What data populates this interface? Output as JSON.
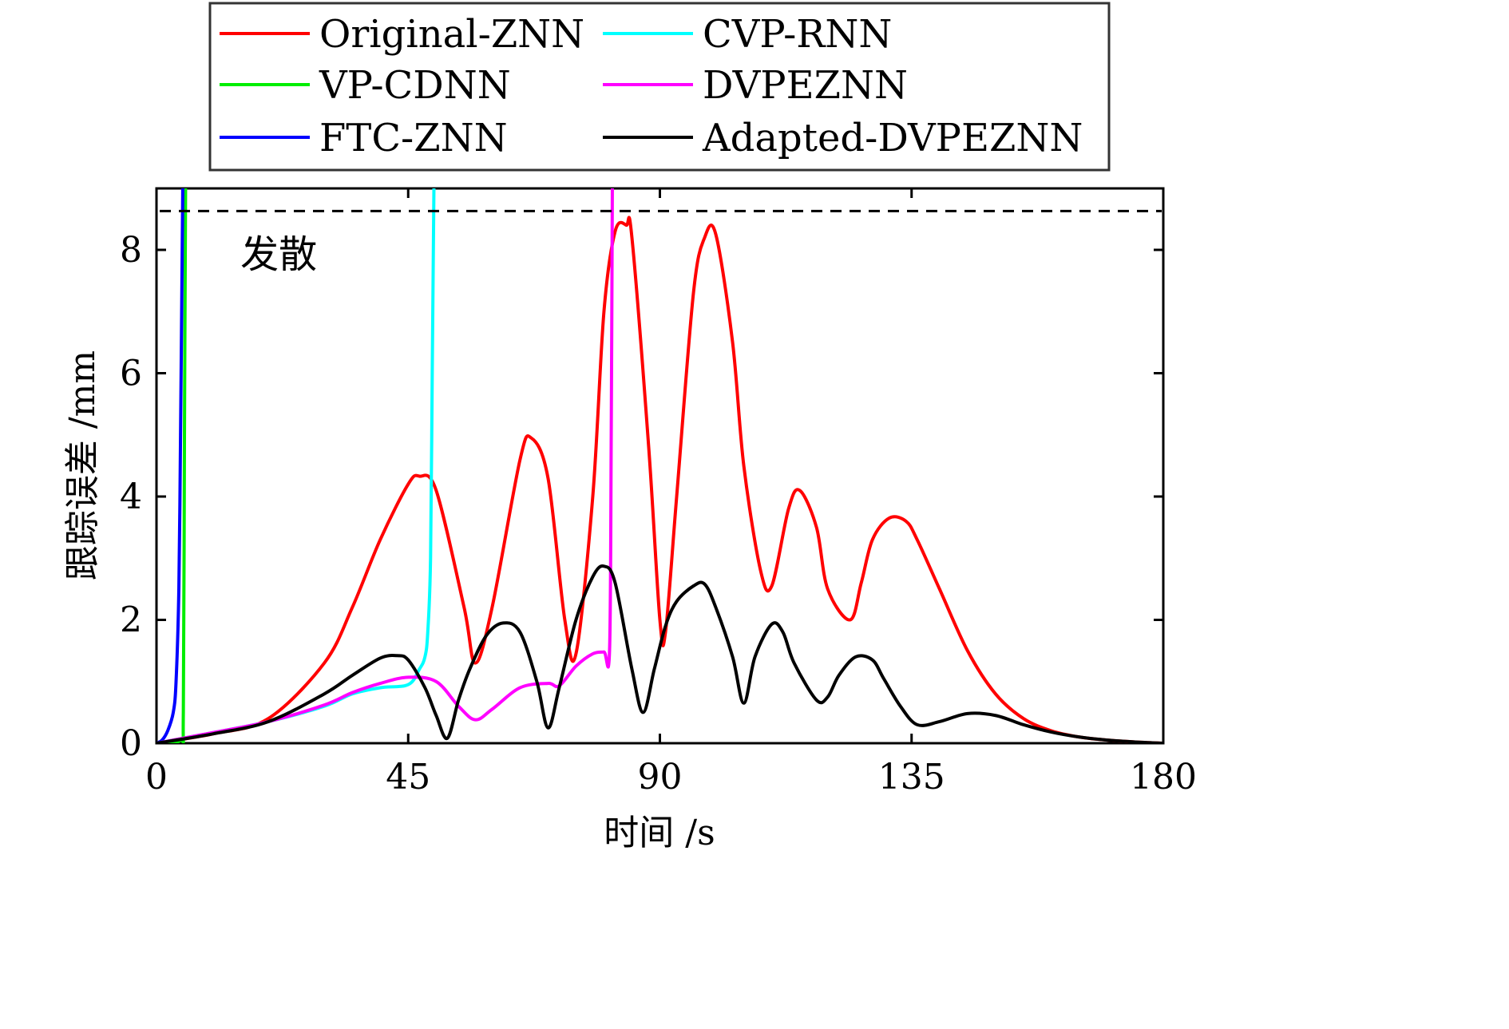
{
  "chart_data": {
    "type": "line",
    "title": "",
    "xlabel": "时间 /s",
    "ylabel": "跟踪误差 /mm",
    "xlim": [
      0,
      180
    ],
    "ylim": [
      0,
      9
    ],
    "xticks": [
      0,
      45,
      90,
      135,
      180
    ],
    "yticks": [
      0,
      2,
      4,
      6,
      8
    ],
    "grid": false,
    "legend_position": "top (above plot)",
    "annotation": {
      "text": "发散",
      "x": 15,
      "y": 8.0
    },
    "divergence_threshold": {
      "y": 8.63,
      "style": "dashed",
      "color": "#000000"
    },
    "series": [
      {
        "name": "Original-ZNN",
        "color": "#ff0000",
        "x": [
          0,
          10,
          20,
          30,
          35,
          40,
          45,
          47,
          50,
          55,
          57,
          60,
          65,
          67,
          70,
          73,
          75,
          78,
          80,
          82,
          84,
          85,
          88,
          90,
          91,
          93,
          96,
          98,
          100,
          103,
          105,
          108,
          110,
          113,
          115,
          118,
          120,
          124,
          126,
          128,
          131,
          134,
          136,
          140,
          145,
          150,
          155,
          160,
          165,
          170,
          175,
          180
        ],
        "y": [
          0,
          0.15,
          0.4,
          1.3,
          2.2,
          3.3,
          4.2,
          4.33,
          4.1,
          2.2,
          1.3,
          2.2,
          4.6,
          4.95,
          4.3,
          2.0,
          1.45,
          4.0,
          7.0,
          8.3,
          8.4,
          8.2,
          4.8,
          2.0,
          1.8,
          4.0,
          7.3,
          8.2,
          8.25,
          6.5,
          4.5,
          2.8,
          2.55,
          3.8,
          4.1,
          3.5,
          2.5,
          2.0,
          2.6,
          3.3,
          3.65,
          3.6,
          3.3,
          2.5,
          1.5,
          0.8,
          0.4,
          0.2,
          0.1,
          0.05,
          0.02,
          0
        ]
      },
      {
        "name": "VP-CDNN",
        "color": "#00ee00",
        "x": [
          0,
          4.3,
          4.8,
          5.0,
          5.2
        ],
        "y": [
          0,
          0.05,
          0.5,
          5,
          9
        ]
      },
      {
        "name": "FTC-ZNN",
        "color": "#0000ff",
        "x": [
          0,
          1,
          2,
          3,
          3.5,
          4,
          4.3,
          4.5,
          4.7
        ],
        "y": [
          0,
          0.05,
          0.2,
          0.5,
          1.0,
          2.5,
          5,
          7,
          9
        ]
      },
      {
        "name": "CVP-RNN",
        "color": "#00ffff",
        "x": [
          0,
          10,
          20,
          30,
          35,
          40,
          45,
          47,
          48,
          48.5,
          49,
          49.3,
          49.6
        ],
        "y": [
          0,
          0.17,
          0.35,
          0.6,
          0.8,
          0.9,
          0.95,
          1.2,
          1.4,
          1.8,
          3,
          6,
          9
        ]
      },
      {
        "name": "DVPEZNN",
        "color": "#ff00ff",
        "x": [
          0,
          10,
          20,
          30,
          35,
          40,
          45,
          50,
          54,
          57,
          60,
          65,
          70,
          72,
          75,
          78,
          80,
          81,
          81.3,
          81.5
        ],
        "y": [
          0,
          0.17,
          0.35,
          0.62,
          0.82,
          0.97,
          1.07,
          1.0,
          0.6,
          0.38,
          0.55,
          0.9,
          0.97,
          0.93,
          1.25,
          1.45,
          1.48,
          1.5,
          5,
          9
        ]
      },
      {
        "name": "Adapted-DVPEZNN",
        "color": "#000000",
        "x": [
          0,
          10,
          20,
          30,
          35,
          40,
          43,
          45,
          48,
          50,
          52,
          54,
          56,
          59,
          62,
          65,
          68,
          70,
          72,
          75,
          78,
          80,
          82,
          85,
          87,
          89,
          91,
          93,
          96,
          98,
          100,
          103,
          105,
          107,
          110,
          112,
          114,
          118,
          120,
          122,
          125,
          128,
          130,
          133,
          136,
          140,
          145,
          150,
          155,
          160,
          165,
          170,
          175,
          180
        ],
        "y": [
          0,
          0.15,
          0.35,
          0.8,
          1.1,
          1.38,
          1.42,
          1.35,
          0.9,
          0.45,
          0.08,
          0.7,
          1.2,
          1.75,
          1.95,
          1.8,
          1.0,
          0.25,
          0.9,
          2.0,
          2.7,
          2.87,
          2.6,
          1.2,
          0.5,
          1.2,
          1.9,
          2.3,
          2.55,
          2.58,
          2.2,
          1.4,
          0.65,
          1.4,
          1.93,
          1.8,
          1.3,
          0.7,
          0.75,
          1.1,
          1.4,
          1.35,
          1.05,
          0.6,
          0.3,
          0.35,
          0.48,
          0.45,
          0.3,
          0.18,
          0.1,
          0.05,
          0.02,
          0
        ]
      }
    ]
  }
}
